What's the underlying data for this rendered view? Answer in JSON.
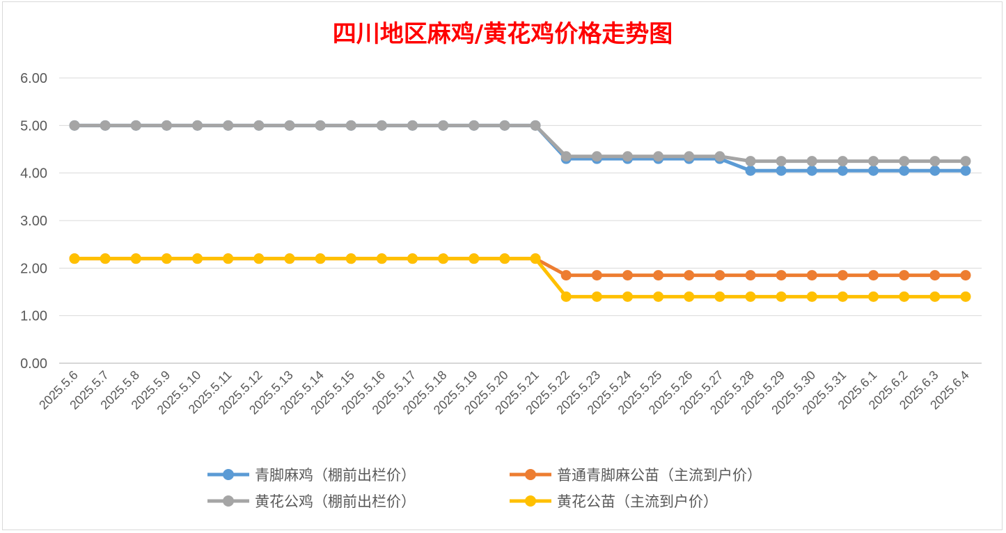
{
  "chart_data": {
    "type": "line",
    "title": "四川地区麻鸡/黄花鸡价格走势图",
    "xlabel": "",
    "ylabel": "",
    "ylim": [
      0,
      6
    ],
    "yticks": [
      "0.00",
      "1.00",
      "2.00",
      "3.00",
      "4.00",
      "5.00",
      "6.00"
    ],
    "grid": true,
    "legend_position": "bottom",
    "categories": [
      "2025.5.6",
      "2025.5.7",
      "2025.5.8",
      "2025.5.9",
      "2025.5.10",
      "2025.5.11",
      "2025.5.12",
      "2025.5.13",
      "2025.5.14",
      "2025.5.15",
      "2025.5.16",
      "2025.5.17",
      "2025.5.18",
      "2025.5.19",
      "2025.5.20",
      "2025.5.21",
      "2025.5.22",
      "2025.5.23",
      "2025.5.24",
      "2025.5.25",
      "2025.5.26",
      "2025.5.27",
      "2025.5.28",
      "2025.5.29",
      "2025.5.30",
      "2025.5.31",
      "2025.6.1",
      "2025.6.2",
      "2025.6.3",
      "2025.6.4"
    ],
    "series": [
      {
        "name": "青脚麻鸡（棚前出栏价）",
        "color": "#5b9bd5",
        "values": [
          5,
          5,
          5,
          5,
          5,
          5,
          5,
          5,
          5,
          5,
          5,
          5,
          5,
          5,
          5,
          5,
          4.3,
          4.3,
          4.3,
          4.3,
          4.3,
          4.3,
          4.05,
          4.05,
          4.05,
          4.05,
          4.05,
          4.05,
          4.05,
          4.05
        ]
      },
      {
        "name": "普通青脚麻公苗（主流到户价）",
        "color": "#ed7d31",
        "values": [
          2.2,
          2.2,
          2.2,
          2.2,
          2.2,
          2.2,
          2.2,
          2.2,
          2.2,
          2.2,
          2.2,
          2.2,
          2.2,
          2.2,
          2.2,
          2.2,
          1.85,
          1.85,
          1.85,
          1.85,
          1.85,
          1.85,
          1.85,
          1.85,
          1.85,
          1.85,
          1.85,
          1.85,
          1.85,
          1.85
        ]
      },
      {
        "name": "黄花公鸡（棚前出栏价）",
        "color": "#a5a5a5",
        "values": [
          5,
          5,
          5,
          5,
          5,
          5,
          5,
          5,
          5,
          5,
          5,
          5,
          5,
          5,
          5,
          5,
          4.35,
          4.35,
          4.35,
          4.35,
          4.35,
          4.35,
          4.25,
          4.25,
          4.25,
          4.25,
          4.25,
          4.25,
          4.25,
          4.25
        ]
      },
      {
        "name": "黄花公苗（主流到户价）",
        "color": "#ffc000",
        "values": [
          2.2,
          2.2,
          2.2,
          2.2,
          2.2,
          2.2,
          2.2,
          2.2,
          2.2,
          2.2,
          2.2,
          2.2,
          2.2,
          2.2,
          2.2,
          2.2,
          1.4,
          1.4,
          1.4,
          1.4,
          1.4,
          1.4,
          1.4,
          1.4,
          1.4,
          1.4,
          1.4,
          1.4,
          1.4,
          1.4
        ]
      }
    ]
  }
}
